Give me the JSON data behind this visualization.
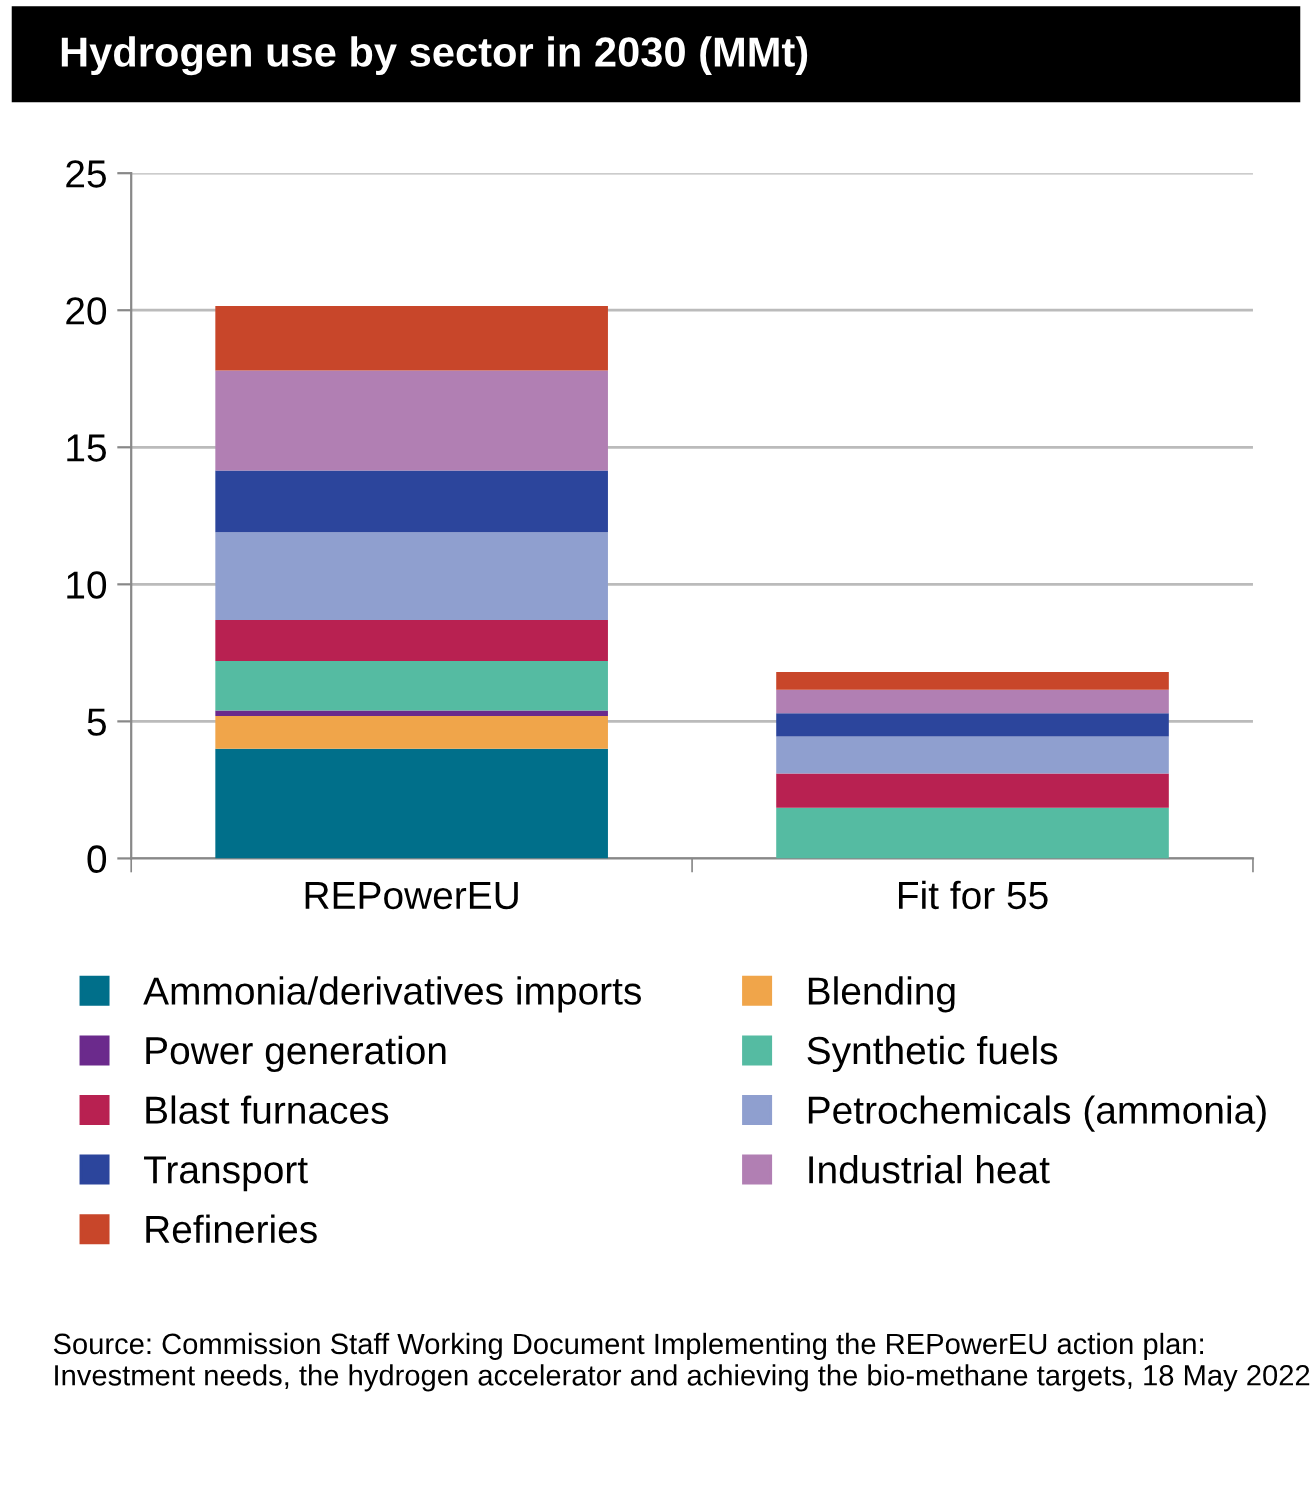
{
  "chart_data": {
    "type": "bar",
    "title": "Hydrogen use by sector in 2030 (MMt)",
    "categories": [
      "REPowerEU",
      "Fit for 55"
    ],
    "stacked": true,
    "series": [
      {
        "name": "Ammonia/derivatives imports",
        "color": "#006f8a",
        "values": [
          4.0,
          0
        ]
      },
      {
        "name": "Blending",
        "color": "#f0a54a",
        "values": [
          1.2,
          0
        ]
      },
      {
        "name": "Power generation",
        "color": "#6b2a8c",
        "values": [
          0.2,
          0
        ]
      },
      {
        "name": "Synthetic fuels",
        "color": "#55bba2",
        "values": [
          1.8,
          1.85
        ]
      },
      {
        "name": "Blast furnaces",
        "color": "#b82151",
        "values": [
          1.5,
          1.25
        ]
      },
      {
        "name": "Petrochemicals (ammonia)",
        "color": "#8f9fcf",
        "values": [
          3.2,
          1.35
        ]
      },
      {
        "name": "Transport",
        "color": "#2c459c",
        "values": [
          2.25,
          0.85
        ]
      },
      {
        "name": "Industrial heat",
        "color": "#b17fb3",
        "values": [
          3.65,
          0.85
        ]
      },
      {
        "name": "Refineries",
        "color": "#c8462a",
        "values": [
          2.35,
          0.65
        ]
      }
    ],
    "ylim": [
      0,
      25
    ],
    "yticks": [
      0,
      5,
      10,
      15,
      20,
      25
    ],
    "grid": "y",
    "legend": "bottom",
    "annotations": [
      "Source: Commission Staff Working Document Implementing the REPowerEU action plan: Investment needs, the hydrogen accelerator and achieving the bio-methane targets, 18 May 2022"
    ]
  }
}
